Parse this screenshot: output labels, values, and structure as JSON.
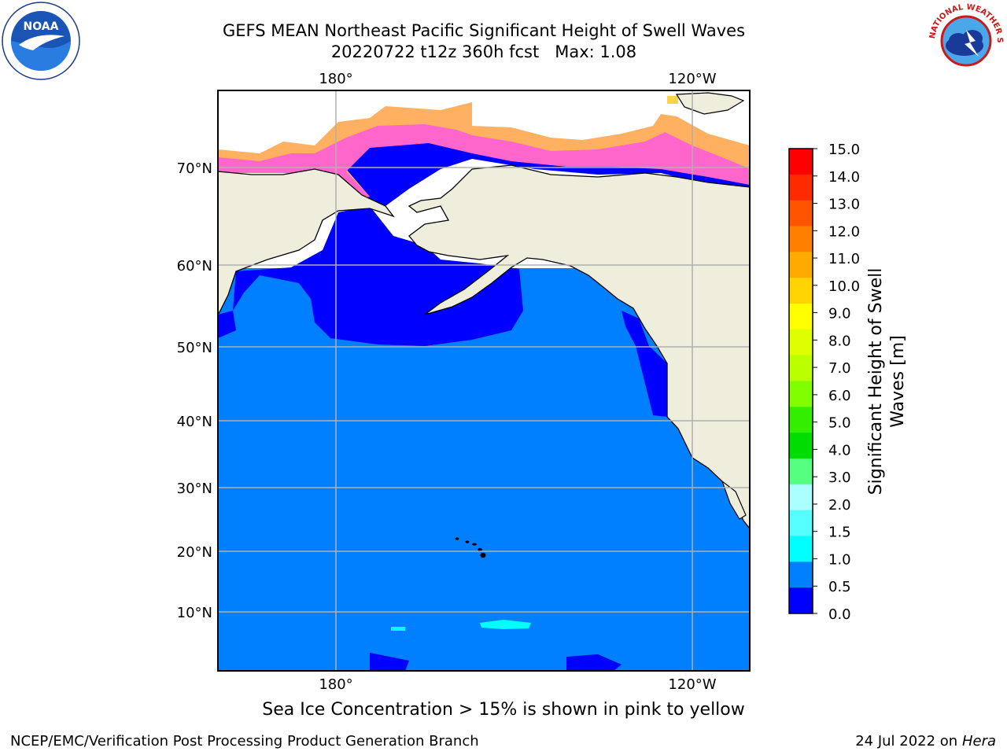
{
  "header": {
    "title_line1": "GEFS MEAN Northeast Pacific Significant Height of Swell Waves",
    "title_line2": "20220722 t12z 360h fcst   Max: 1.08"
  },
  "logos": {
    "noaa": {
      "icon": "noaa-logo",
      "text": "NOAA"
    },
    "nws": {
      "icon": "national-weather-service-logo",
      "text": "NATIONAL WEATHER SERVICE"
    }
  },
  "map": {
    "lon_labels_top": [
      "180°",
      "120°W"
    ],
    "lon_labels_bottom": [
      "180°",
      "120°W"
    ],
    "lat_labels": [
      "70°N",
      "60°N",
      "50°N",
      "40°N",
      "30°N",
      "20°N",
      "10°N"
    ],
    "colors": {
      "land": "#efeedc",
      "ocean_low": "#0000ff",
      "ocean_mid": "#0080ff",
      "ice_pink": "#ff66cc",
      "ice_orange": "#ffb060",
      "ice_yellow": "#ffd24a",
      "cyan": "#00ffff"
    }
  },
  "colorbar": {
    "label": "Significant Height of Swell Waves [m]",
    "ticks": [
      "15.0",
      "14.0",
      "13.0",
      "12.0",
      "11.0",
      "10.0",
      "9.0",
      "8.0",
      "7.0",
      "6.0",
      "5.0",
      "4.0",
      "3.0",
      "2.0",
      "1.5",
      "1.0",
      "0.5",
      "0.0"
    ],
    "colors_top_to_bottom": [
      "#ff0000",
      "#ff2a00",
      "#ff5500",
      "#ff8000",
      "#ffaa00",
      "#ffd400",
      "#ffff00",
      "#ddff00",
      "#bbff00",
      "#80ff00",
      "#33ee00",
      "#00dd00",
      "#55ff80",
      "#aaffff",
      "#55ffff",
      "#00ffff",
      "#0080ff",
      "#0000ff"
    ]
  },
  "subtitle": "Sea Ice Concentration > 15% is shown in pink to yellow",
  "footer": {
    "left": "NCEP/EMC/Verification Post Processing Product Generation Branch",
    "right_prefix": "24 Jul 2022 on ",
    "right_host": "Hera"
  }
}
